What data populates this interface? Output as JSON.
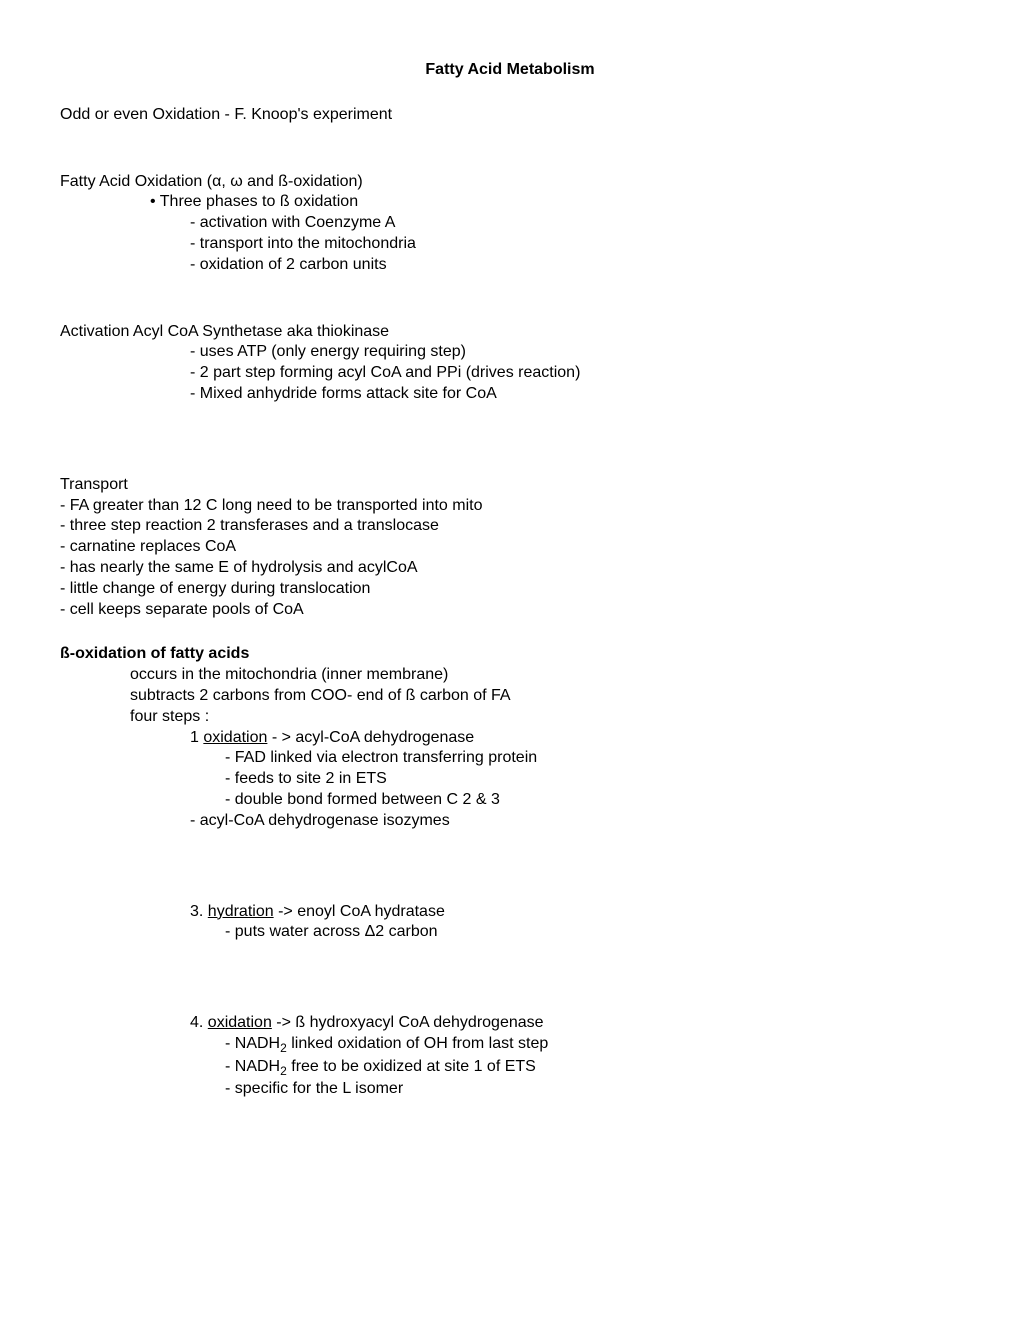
{
  "title": "Fatty Acid Metabolism",
  "line1": "Odd or even Oxidation - F. Knoop's experiment",
  "line2": "Fatty Acid Oxidation (α, ω and ß-oxidation)",
  "bullet1": "Three phases to ß oxidation",
  "b1a": "- activation with Coenzyme A",
  "b1b": "- transport into the mitochondria",
  "b1c": "- oxidation of 2 carbon units",
  "sec3": "Activation Acyl CoA Synthetase aka thiokinase",
  "s3a": "- uses ATP (only energy requiring step)",
  "s3b": "2 part step forming acyl CoA and PPi (drives reaction)",
  "s3c": "Mixed anhydride forms attack site for CoA",
  "sec4": "Transport",
  "t1": "FA  greater than 12 C long need to be transported into mito",
  "t2": "three step reaction 2 transferases and a translocase",
  "t3": "carnatine replaces CoA",
  "t4": "has nearly the same E of hydrolysis and  acylCoA",
  "t5": " little change of energy during translocation",
  "t6": "cell keeps separate pools  of CoA",
  "sec5": "ß-oxidation of fatty acids",
  "o1": "occurs in the mitochondria (inner membrane)",
  "o2": "subtracts 2 carbons from COO- end of ß carbon of FA",
  "o3": "four steps :",
  "step1num": "1 ",
  "step1u": "oxidation",
  "step1rest": " - >  acyl-CoA dehydrogenase",
  "s1a": "- FAD linked via electron transferring protein",
  "s1b": "- feeds to site 2 in ETS",
  "s1c": "- double bond formed between C 2 & 3",
  "s1d": "acyl-CoA dehydrogenase isozymes",
  "step3num": "3.  ",
  "step3u": "hydration",
  "step3rest": " ->   enoyl CoA hydratase",
  "s3d": "puts water across Δ2 carbon",
  "step4num": "4.  ",
  "step4u": "oxidation",
  "step4rest": " ->   ß hydroxyacyl CoA dehydrogenase",
  "s4a_pre": "- NADH",
  "s4a_post": " linked oxidation of OH from last step",
  "s4b_pre": "- NADH",
  "s4b_post": " free to be oxidized at site 1 of ETS",
  "s4c": "specific for the L isomer"
}
